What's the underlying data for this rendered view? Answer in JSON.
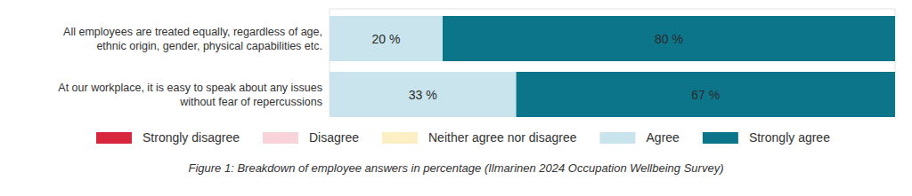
{
  "chart_data": {
    "type": "bar",
    "orientation": "horizontal",
    "stacked": true,
    "data_labels": true,
    "tick_labels": false,
    "legend": "bottom",
    "caption": "Figure 1: Breakdown of employee answers in percentage (Ilmarinen 2024 Occupation Wellbeing Survey)",
    "categories": [
      "All employees are treated equally, regardless of age, ethnic origin, gender, physical capabilities etc.",
      "At our workplace, it is easy to speak about any issues without fear of repercussions"
    ],
    "xlim": [
      0,
      100
    ],
    "series": [
      {
        "name": "Strongly disagree",
        "color": "#d7263d",
        "values": [
          0,
          0
        ]
      },
      {
        "name": "Disagree",
        "color": "#f9d3da",
        "values": [
          0,
          0
        ]
      },
      {
        "name": "Neither agree nor disagree",
        "color": "#fcefc4",
        "values": [
          0,
          0
        ]
      },
      {
        "name": "Agree",
        "color": "#c9e4ec",
        "values": [
          20,
          33
        ],
        "value_labels": [
          "20 %",
          "33 %"
        ]
      },
      {
        "name": "Strongly agree",
        "color": "#0d7589",
        "values": [
          80,
          67
        ],
        "value_labels": [
          "80 %",
          "67 %"
        ]
      }
    ]
  }
}
